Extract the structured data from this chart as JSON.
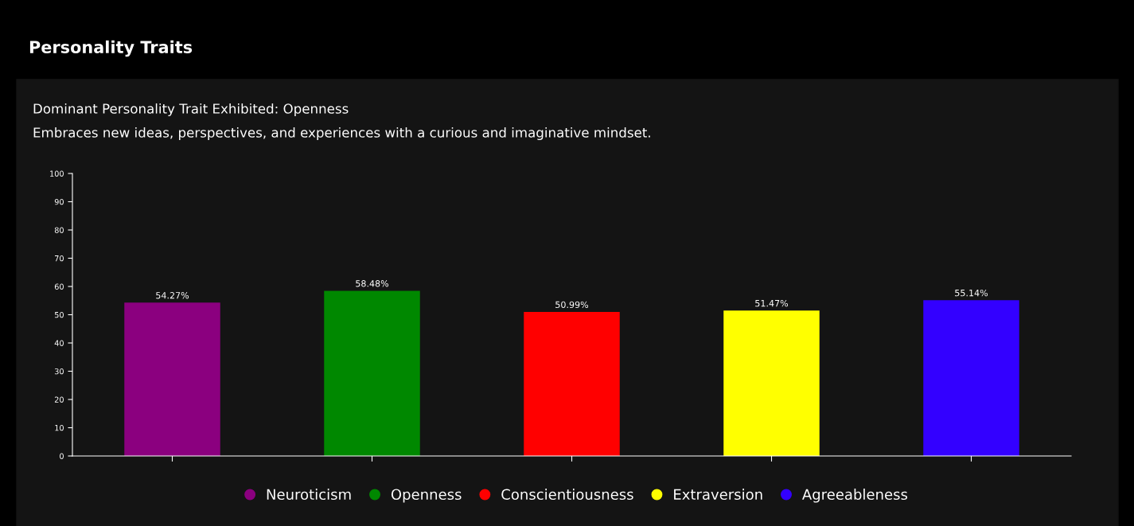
{
  "chart_data": {
    "type": "bar",
    "title": "Personality Traits",
    "subtitle": "Dominant Personality Trait Exhibited: Openness",
    "annotations": [
      "Embraces new ideas, perspectives, and experiences with a curious and imaginative mindset."
    ],
    "categories": [
      null,
      null,
      null,
      null,
      null
    ],
    "series": [
      {
        "name": "Neuroticism",
        "color": "#8b007f",
        "values": [
          54.27,
          null,
          null,
          null,
          null
        ],
        "value_labels": [
          "54.27%",
          null,
          null,
          null,
          null
        ]
      },
      {
        "name": "Openness",
        "color": "#008800",
        "values": [
          null,
          58.48,
          null,
          null,
          null
        ],
        "value_labels": [
          null,
          "58.48%",
          null,
          null,
          null
        ]
      },
      {
        "name": "Conscientiousness",
        "color": "#ff0000",
        "values": [
          null,
          null,
          50.99,
          null,
          null
        ],
        "value_labels": [
          null,
          null,
          "50.99%",
          null,
          null
        ]
      },
      {
        "name": "Extraversion",
        "color": "#ffff00",
        "values": [
          null,
          null,
          null,
          51.47,
          null
        ],
        "value_labels": [
          null,
          null,
          null,
          "51.47%",
          null
        ]
      },
      {
        "name": "Agreeableness",
        "color": "#3300ff",
        "values": [
          null,
          null,
          null,
          null,
          55.14
        ],
        "value_labels": [
          null,
          null,
          null,
          null,
          "55.14%"
        ]
      }
    ],
    "ylim": [
      0,
      100
    ],
    "yticks": [
      0,
      10,
      20,
      30,
      40,
      50,
      60,
      70,
      80,
      90,
      100
    ],
    "grid": false,
    "legend": "bottom",
    "tick_labels": "y"
  }
}
